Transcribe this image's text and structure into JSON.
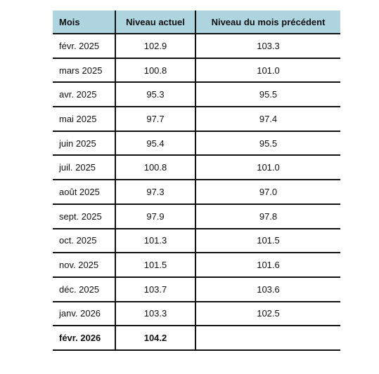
{
  "table": {
    "headers": {
      "month": "Mois",
      "current": "Niveau actuel",
      "previous": "Niveau du mois précédent"
    },
    "rows": [
      {
        "month": "févr. 2025",
        "current": "102.9",
        "previous": "103.3",
        "bold": false
      },
      {
        "month": "mars 2025",
        "current": "100.8",
        "previous": "101.0",
        "bold": false
      },
      {
        "month": "avr. 2025",
        "current": "95.3",
        "previous": "95.5",
        "bold": false
      },
      {
        "month": "mai 2025",
        "current": "97.7",
        "previous": "97.4",
        "bold": false
      },
      {
        "month": "juin 2025",
        "current": "95.4",
        "previous": "95.5",
        "bold": false
      },
      {
        "month": "juil. 2025",
        "current": "100.8",
        "previous": "101.0",
        "bold": false
      },
      {
        "month": "août 2025",
        "current": "97.3",
        "previous": "97.0",
        "bold": false
      },
      {
        "month": "sept. 2025",
        "current": "97.9",
        "previous": "97.8",
        "bold": false
      },
      {
        "month": "oct. 2025",
        "current": "101.3",
        "previous": "101.5",
        "bold": false
      },
      {
        "month": "nov. 2025",
        "current": "101.5",
        "previous": "101.6",
        "bold": false
      },
      {
        "month": "déc. 2025",
        "current": "103.7",
        "previous": "103.6",
        "bold": false
      },
      {
        "month": "janv. 2026",
        "current": "103.3",
        "previous": "102.5",
        "bold": false
      },
      {
        "month": "févr. 2026",
        "current": "104.2",
        "previous": "",
        "bold": true
      }
    ]
  },
  "colors": {
    "header_background": "#aed4df",
    "rule": "#111111"
  }
}
